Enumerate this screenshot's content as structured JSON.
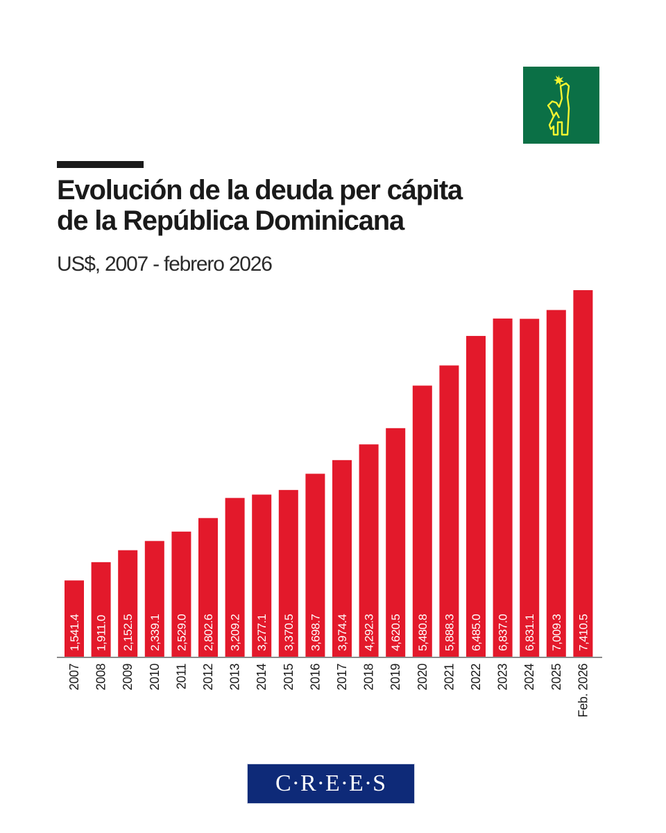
{
  "header": {
    "title_line1": "Evolución de la deuda per cápita",
    "title_line2": "de la República Dominicana",
    "subtitle": "US$, 2007 - febrero 2026"
  },
  "branding": {
    "top_logo_icon": "statue-figure-icon",
    "top_logo_bg": "#0b7046",
    "top_logo_fg": "#f5f531",
    "bottom_logo_text": "C·R·E·E·S",
    "bottom_logo_bg": "#0e2a78"
  },
  "colors": {
    "bar": "#e3192b",
    "bar_label": "#ffffff",
    "axis": "#8a8a8a",
    "tick_label": "#1a1a1a"
  },
  "chart_data": {
    "type": "bar",
    "title": "Evolución de la deuda per cápita de la República Dominicana",
    "subtitle": "US$, 2007 - febrero 2026",
    "xlabel": "",
    "ylabel": "US$",
    "orientation": "vertical",
    "grid": false,
    "legend": "none",
    "ylim": [
      0,
      7410.5
    ],
    "categories": [
      "2007",
      "2008",
      "2009",
      "2010",
      "2011",
      "2012",
      "2013",
      "2014",
      "2015",
      "2016",
      "2017",
      "2018",
      "2019",
      "2020",
      "2021",
      "2022",
      "2023",
      "2024",
      "2025",
      "Feb. 2026"
    ],
    "values": [
      1541.4,
      1911.0,
      2152.5,
      2339.1,
      2529.0,
      2802.6,
      3209.2,
      3277.1,
      3370.5,
      3698.7,
      3974.4,
      4292.3,
      4620.5,
      5480.8,
      5888.3,
      6485.0,
      6837.0,
      6831.1,
      7009.3,
      7410.5
    ],
    "value_labels": [
      "1,541.4",
      "1,911.0",
      "2,152.5",
      "2,339.1",
      "2,529.0",
      "2,802.6",
      "3,209.2",
      "3,277.1",
      "3,370.5",
      "3,698.7",
      "3,974.4",
      "4,292.3",
      "4,620.5",
      "5,480.8",
      "5,888.3",
      "6,485.0",
      "6,837.0",
      "6,831.1",
      "7,009.3",
      "7,410.5"
    ],
    "data_label_position": "inside-bottom-vertical",
    "tick_label_rotation": "vertical"
  }
}
